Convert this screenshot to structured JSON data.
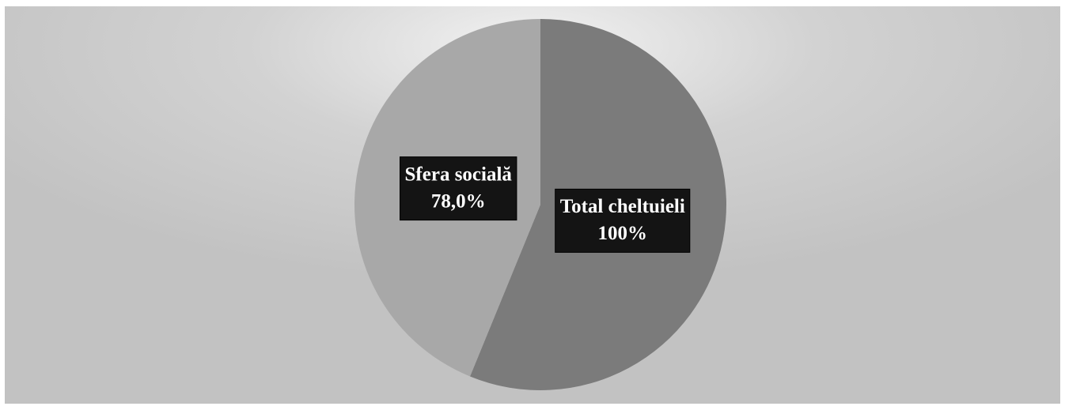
{
  "chart_data": {
    "type": "pie",
    "categories": [
      "Total cheltuieli",
      "Sfera socială"
    ],
    "values": [
      100,
      78
    ],
    "value_labels": [
      "100%",
      "78,0%"
    ],
    "colors": [
      "#7b7b7b",
      "#a8a8a8"
    ]
  }
}
